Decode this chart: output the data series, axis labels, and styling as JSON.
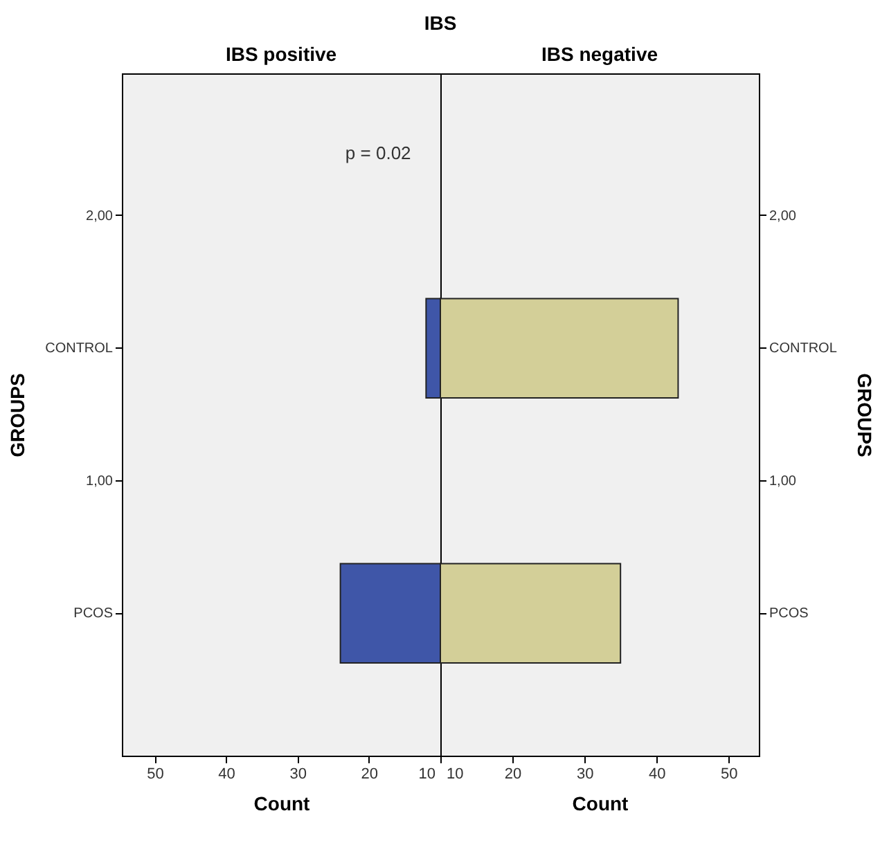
{
  "chart_data": [
    {
      "type": "bar",
      "orientation": "horizontal",
      "title": "IBS",
      "subtitle": "IBS positive",
      "xlabel": "Count",
      "ylabel": "GROUPS",
      "categories": [
        "2,00",
        "CONTROL",
        "1,00",
        "PCOS"
      ],
      "series": [
        {
          "color": "#3f56a8",
          "values": [
            null,
            2,
            null,
            14
          ],
          "base": [
            null,
            10,
            null,
            10
          ]
        }
      ],
      "xlim": [
        54.6,
        10
      ],
      "xticks": [
        50,
        40,
        30,
        20,
        10
      ],
      "grid": false,
      "annotations": [
        "p = 0.02"
      ]
    },
    {
      "type": "bar",
      "orientation": "horizontal",
      "subtitle": "IBS negative",
      "xlabel": "Count",
      "ylabel": "GROUPS",
      "categories": [
        "2,00",
        "CONTROL",
        "1,00",
        "PCOS"
      ],
      "series": [
        {
          "color": "#d3cf98",
          "values": [
            null,
            33,
            null,
            25
          ],
          "base": [
            null,
            10,
            null,
            10
          ]
        }
      ],
      "xlim": [
        10,
        54.2
      ],
      "xticks": [
        10,
        20,
        30,
        40,
        50
      ],
      "grid": false
    }
  ]
}
